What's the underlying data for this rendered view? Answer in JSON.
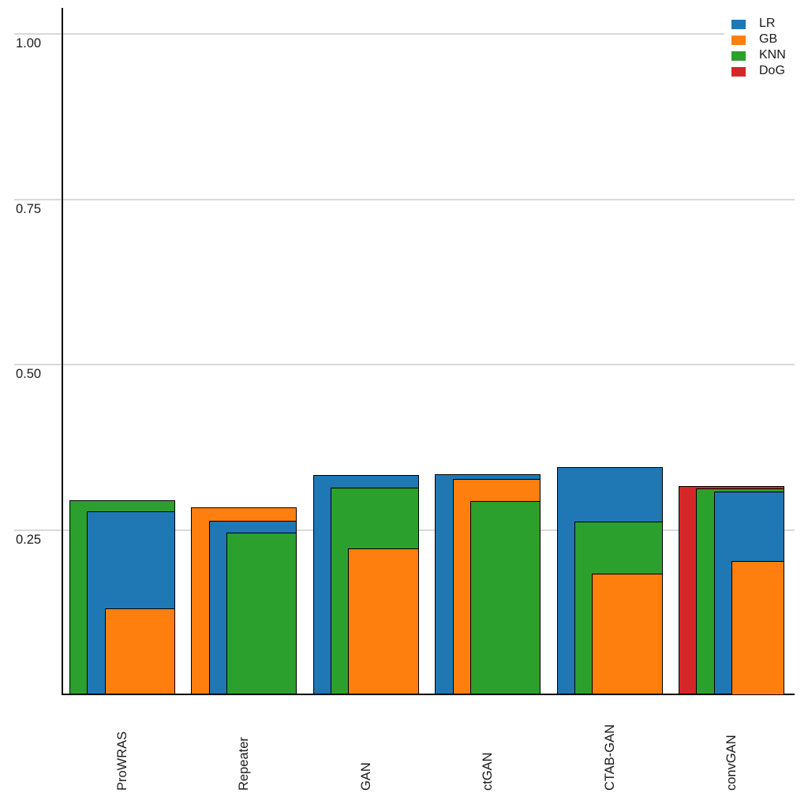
{
  "chart_data": {
    "type": "bar",
    "variant": "overlapping-nested-bars",
    "title": "",
    "xlabel": "",
    "ylabel": "",
    "grid": "horizontal",
    "legend_position": "top-right",
    "categories": [
      "ProWRAS",
      "Repeater",
      "GAN",
      "ctGAN",
      "CTAB-GAN",
      "convGAN"
    ],
    "series": [
      {
        "name": "LR",
        "color": "#1f77b4",
        "values": [
          0.278,
          0.264,
          0.333,
          0.334,
          0.345,
          0.308
        ]
      },
      {
        "name": "GB",
        "color": "#ff7f0e",
        "values": [
          0.131,
          0.284,
          0.222,
          0.327,
          0.184,
          0.203
        ]
      },
      {
        "name": "KNN",
        "color": "#2ca02c",
        "values": [
          0.295,
          0.246,
          0.314,
          0.294,
          0.263,
          0.313
        ]
      },
      {
        "name": "DoG",
        "color": "#d62728",
        "values": [
          null,
          null,
          null,
          null,
          null,
          0.316
        ]
      }
    ],
    "yticks": [
      {
        "value": 0.25,
        "label": "0.25"
      },
      {
        "value": 0.5,
        "label": "0.50"
      },
      {
        "value": 0.75,
        "label": "0.75"
      },
      {
        "value": 1.0,
        "label": "1.00"
      }
    ],
    "ylim": [
      0,
      1.04
    ],
    "colors": {
      "bar_edge": "#000000",
      "gridline": "#d9d9d9",
      "axis": "#000000",
      "text": "#1a1a1a",
      "background": "#ffffff"
    }
  },
  "legend": {
    "items": [
      {
        "label": "LR",
        "color": "#1f77b4"
      },
      {
        "label": "GB",
        "color": "#ff7f0e"
      },
      {
        "label": "KNN",
        "color": "#2ca02c"
      },
      {
        "label": "DoG",
        "color": "#d62728"
      }
    ]
  }
}
